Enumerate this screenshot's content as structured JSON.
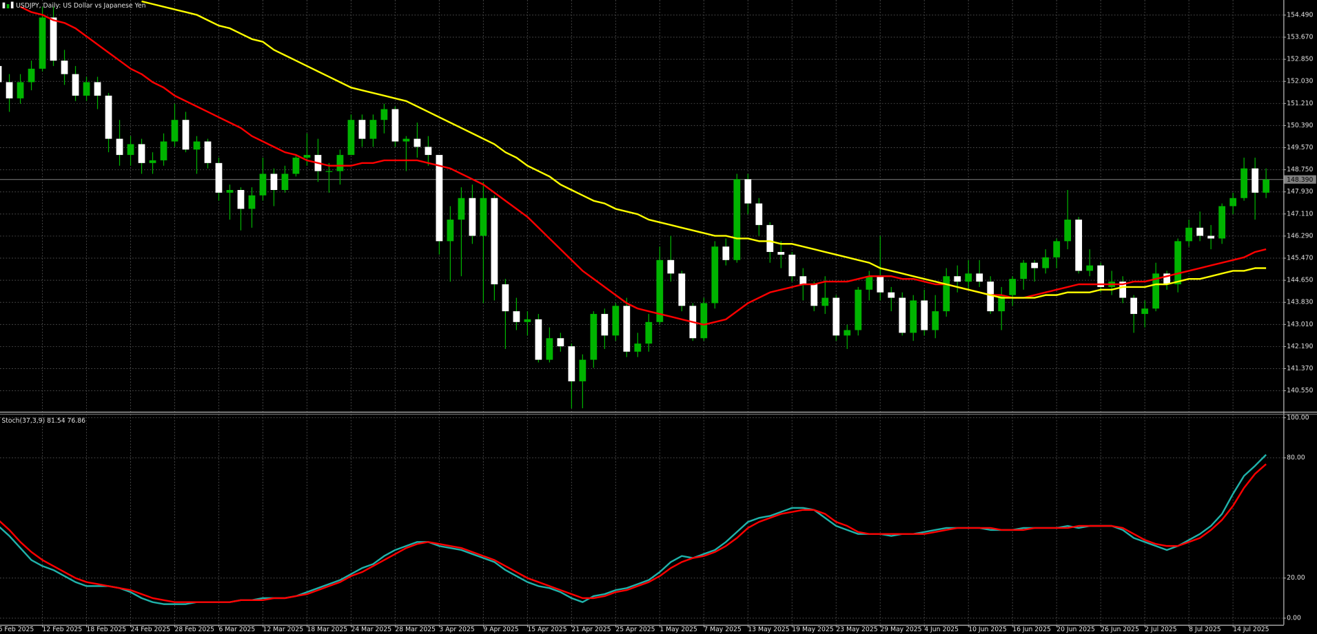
{
  "chart_data": [
    {
      "type": "candlestick",
      "title": "USDJPY, Daily:  US Dollar vs Japanese Yen",
      "categories": [
        "6 Feb 2025",
        null,
        null,
        null,
        "12 Feb 2025",
        null,
        null,
        null,
        "18 Feb 2025",
        null,
        null,
        null,
        "24 Feb 2025",
        null,
        null,
        null,
        "28 Feb 2025",
        null,
        null,
        null,
        "6 Mar 2025",
        null,
        null,
        null,
        "12 Mar 2025",
        null,
        null,
        null,
        "18 Mar 2025",
        null,
        null,
        null,
        "24 Mar 2025",
        null,
        null,
        null,
        "28 Mar 2025",
        null,
        null,
        null,
        "3 Apr 2025",
        null,
        null,
        null,
        "9 Apr 2025",
        null,
        null,
        null,
        "15 Apr 2025",
        null,
        null,
        null,
        "21 Apr 2025",
        null,
        null,
        null,
        "25 Apr 2025",
        null,
        null,
        null,
        "1 May 2025",
        null,
        null,
        null,
        "7 May 2025",
        null,
        null,
        null,
        "13 May 2025",
        null,
        null,
        null,
        "19 May 2025",
        null,
        null,
        null,
        "23 May 2025",
        null,
        null,
        null,
        "29 May 2025",
        null,
        null,
        null,
        "4 Jun 2025",
        null,
        null,
        null,
        "10 Jun 2025",
        null,
        null,
        null,
        "16 Jun 2025",
        null,
        null,
        null,
        "20 Jun 2025",
        null,
        null,
        null,
        "26 Jun 2025",
        null,
        null,
        null,
        "2 Jul 2025",
        null,
        null,
        null,
        "8 Jul 2025",
        null,
        null,
        null,
        "14 Jul 2025",
        null,
        null,
        null
      ],
      "open": [
        152.6,
        152.0,
        151.4,
        152.0,
        152.5,
        154.4,
        152.8,
        152.3,
        151.5,
        152.0,
        151.5,
        149.9,
        149.3,
        149.7,
        149.0,
        149.1,
        149.8,
        150.6,
        149.5,
        149.8,
        149.0,
        147.9,
        148.0,
        147.3,
        147.8,
        148.6,
        148.0,
        148.6,
        149.2,
        149.3,
        148.7,
        148.7,
        149.3,
        150.6,
        149.9,
        150.6,
        151.0,
        149.8,
        149.9,
        149.6,
        149.3,
        146.1,
        146.9,
        147.7,
        146.3,
        147.7,
        144.5,
        143.5,
        143.1,
        143.2,
        141.7,
        142.5,
        142.2,
        140.9,
        141.7,
        143.4,
        142.6,
        143.7,
        142.0,
        142.3,
        143.1,
        145.4,
        144.9,
        143.7,
        142.5,
        143.8,
        145.9,
        145.4,
        148.4,
        147.5,
        146.7,
        145.7,
        145.6,
        144.8,
        144.5,
        143.7,
        144.0,
        142.6,
        142.8,
        144.3,
        144.8,
        144.2,
        144.0,
        142.7,
        143.9,
        142.8,
        143.5,
        144.8,
        144.6,
        144.9,
        144.6,
        143.5,
        144.1,
        144.7,
        145.3,
        145.1,
        145.5,
        146.1,
        146.9,
        145.0,
        145.2,
        144.4,
        144.6,
        144.0,
        143.4,
        143.6,
        144.9,
        144.5,
        146.1,
        146.6,
        146.3,
        146.2,
        147.4,
        147.7,
        148.8,
        147.9
      ],
      "high": [
        152.9,
        152.3,
        152.3,
        152.8,
        154.8,
        154.8,
        153.2,
        152.6,
        152.2,
        152.2,
        151.6,
        150.6,
        150.0,
        149.9,
        149.4,
        150.1,
        151.2,
        150.9,
        150.0,
        149.9,
        149.2,
        148.2,
        148.1,
        148.1,
        149.2,
        148.8,
        148.9,
        149.3,
        150.1,
        149.9,
        149.0,
        149.5,
        150.8,
        150.8,
        150.8,
        151.2,
        151.1,
        150.0,
        150.5,
        150.0,
        149.3,
        147.4,
        148.1,
        148.2,
        148.3,
        147.8,
        144.7,
        144.0,
        143.5,
        143.4,
        142.9,
        142.7,
        142.3,
        141.9,
        143.5,
        143.6,
        143.8,
        144.0,
        142.7,
        143.4,
        145.9,
        146.3,
        145.0,
        143.8,
        144.0,
        146.1,
        146.2,
        148.6,
        148.6,
        147.7,
        146.8,
        146.1,
        145.7,
        145.1,
        144.6,
        144.8,
        144.1,
        143.0,
        144.4,
        145.0,
        146.3,
        144.4,
        144.2,
        144.1,
        144.3,
        144.1,
        145.1,
        145.2,
        145.4,
        145.4,
        144.8,
        144.4,
        144.8,
        145.4,
        145.4,
        145.8,
        146.2,
        148.0,
        147.0,
        145.8,
        145.3,
        145.0,
        144.8,
        144.1,
        143.9,
        145.3,
        145.0,
        146.2,
        146.9,
        147.2,
        146.7,
        147.5,
        147.9,
        149.2,
        149.2,
        148.8
      ],
      "low": [
        151.3,
        150.9,
        151.2,
        151.7,
        152.4,
        152.6,
        151.9,
        151.3,
        151.3,
        151.0,
        149.4,
        148.9,
        148.9,
        148.6,
        148.6,
        148.9,
        149.6,
        149.4,
        148.6,
        148.8,
        147.6,
        146.9,
        146.5,
        146.6,
        147.6,
        147.4,
        147.9,
        148.5,
        148.9,
        148.3,
        147.9,
        148.2,
        149.3,
        149.6,
        149.6,
        150.1,
        149.6,
        148.7,
        149.2,
        148.9,
        145.6,
        144.6,
        144.8,
        146.0,
        143.8,
        143.9,
        142.1,
        142.8,
        142.6,
        141.6,
        141.6,
        142.0,
        139.9,
        139.9,
        141.4,
        142.1,
        142.4,
        141.8,
        141.8,
        142.0,
        143.0,
        144.6,
        143.5,
        142.4,
        142.4,
        143.6,
        145.2,
        145.3,
        147.1,
        146.3,
        145.3,
        145.1,
        144.6,
        143.9,
        143.5,
        143.4,
        142.4,
        142.1,
        142.6,
        143.9,
        143.9,
        143.5,
        142.6,
        142.4,
        142.6,
        142.5,
        143.3,
        144.2,
        144.3,
        144.4,
        143.4,
        142.8,
        143.7,
        144.3,
        144.6,
        144.9,
        145.1,
        145.8,
        144.9,
        144.8,
        144.2,
        144.1,
        143.8,
        142.7,
        142.9,
        143.5,
        144.3,
        144.2,
        145.9,
        146.1,
        145.8,
        146.0,
        147.1,
        147.6,
        146.9,
        147.7
      ],
      "close": [
        152.0,
        151.4,
        152.0,
        152.5,
        154.4,
        152.8,
        152.3,
        151.5,
        152.0,
        151.5,
        149.9,
        149.3,
        149.7,
        149.0,
        149.1,
        149.8,
        150.6,
        149.5,
        149.8,
        149.0,
        147.9,
        148.0,
        147.3,
        147.8,
        148.6,
        148.0,
        148.6,
        149.2,
        149.3,
        148.7,
        148.7,
        149.3,
        150.6,
        149.9,
        150.6,
        151.0,
        149.8,
        149.9,
        149.6,
        149.3,
        146.1,
        146.9,
        147.7,
        146.3,
        147.7,
        144.5,
        143.5,
        143.1,
        143.2,
        141.7,
        142.5,
        142.2,
        140.9,
        141.7,
        143.4,
        142.6,
        143.7,
        142.0,
        142.3,
        143.1,
        145.4,
        144.9,
        143.7,
        142.5,
        143.8,
        145.9,
        145.4,
        148.4,
        147.5,
        146.7,
        145.7,
        145.6,
        144.8,
        144.5,
        143.7,
        144.0,
        142.6,
        142.8,
        144.3,
        144.8,
        144.2,
        144.0,
        142.7,
        143.9,
        142.8,
        143.5,
        144.8,
        144.6,
        144.9,
        144.6,
        143.5,
        144.1,
        144.7,
        145.3,
        145.1,
        145.5,
        146.1,
        146.9,
        145.0,
        145.2,
        144.4,
        144.6,
        144.0,
        143.4,
        143.6,
        144.9,
        144.5,
        146.1,
        146.6,
        146.3,
        146.2,
        147.4,
        147.7,
        148.8,
        147.9,
        148.39
      ],
      "up_color": "#00b400",
      "down_color": "#ffffff",
      "wick_color": "#00b400",
      "series": [
        {
          "color": "#ff0000",
          "values": [
            null,
            null,
            154.8,
            154.6,
            154.5,
            154.3,
            154.2,
            154.0,
            153.7,
            153.4,
            153.1,
            152.8,
            152.5,
            152.3,
            152.0,
            151.8,
            151.5,
            151.3,
            151.1,
            150.9,
            150.7,
            150.5,
            150.3,
            150.0,
            149.8,
            149.6,
            149.4,
            149.3,
            149.1,
            149.0,
            148.9,
            148.9,
            148.9,
            149.0,
            149.0,
            149.1,
            149.1,
            149.1,
            149.1,
            149.0,
            148.9,
            148.8,
            148.6,
            148.4,
            148.2,
            147.9,
            147.6,
            147.3,
            147.0,
            146.6,
            146.2,
            145.8,
            145.4,
            145.0,
            144.7,
            144.4,
            144.1,
            143.8,
            143.6,
            143.5,
            143.4,
            143.3,
            143.2,
            143.1,
            143.0,
            143.1,
            143.2,
            143.5,
            143.8,
            144.0,
            144.2,
            144.3,
            144.4,
            144.5,
            144.5,
            144.6,
            144.6,
            144.6,
            144.7,
            144.8,
            144.8,
            144.8,
            144.7,
            144.7,
            144.6,
            144.5,
            144.5,
            144.4,
            144.3,
            144.2,
            144.1,
            144.1,
            144.0,
            144.0,
            144.1,
            144.2,
            144.3,
            144.4,
            144.5,
            144.5,
            144.5,
            144.5,
            144.5,
            144.6,
            144.6,
            144.7,
            144.8,
            144.9,
            145.0,
            145.1,
            145.2,
            145.3,
            145.4,
            145.5,
            145.7,
            145.8
          ]
        },
        {
          "color": "#ffff00",
          "values": [
            null,
            null,
            null,
            null,
            null,
            null,
            null,
            null,
            null,
            null,
            null,
            null,
            null,
            155.0,
            154.9,
            154.8,
            154.7,
            154.6,
            154.5,
            154.3,
            154.1,
            154.0,
            153.8,
            153.6,
            153.5,
            153.2,
            153.0,
            152.8,
            152.6,
            152.4,
            152.2,
            152.0,
            151.8,
            151.7,
            151.6,
            151.5,
            151.4,
            151.3,
            151.1,
            150.9,
            150.7,
            150.5,
            150.3,
            150.1,
            149.9,
            149.7,
            149.4,
            149.2,
            148.9,
            148.7,
            148.5,
            148.2,
            148.0,
            147.8,
            147.6,
            147.5,
            147.3,
            147.2,
            147.1,
            146.9,
            146.8,
            146.7,
            146.6,
            146.5,
            146.4,
            146.3,
            146.3,
            146.2,
            146.2,
            146.1,
            146.1,
            146.0,
            146.0,
            145.9,
            145.8,
            145.7,
            145.6,
            145.5,
            145.4,
            145.3,
            145.1,
            145.0,
            144.9,
            144.8,
            144.7,
            144.6,
            144.5,
            144.4,
            144.3,
            144.2,
            144.1,
            144.0,
            144.0,
            144.0,
            144.0,
            144.1,
            144.1,
            144.2,
            144.2,
            144.2,
            144.3,
            144.3,
            144.4,
            144.4,
            144.4,
            144.5,
            144.5,
            144.6,
            144.7,
            144.7,
            144.8,
            144.9,
            145.0,
            145.0,
            145.1,
            145.1
          ]
        }
      ],
      "ylim": [
        139.77,
        155.05
      ],
      "yticks": [
        {
          "value": 154.49,
          "label": "154.490"
        },
        {
          "value": 153.67,
          "label": "153.670"
        },
        {
          "value": 152.85,
          "label": "152.850"
        },
        {
          "value": 152.03,
          "label": "152.030"
        },
        {
          "value": 151.21,
          "label": "151.210"
        },
        {
          "value": 150.39,
          "label": "150.390"
        },
        {
          "value": 149.57,
          "label": "149.570"
        },
        {
          "value": 148.75,
          "label": "148.750"
        },
        {
          "value": 147.93,
          "label": "147.930"
        },
        {
          "value": 147.11,
          "label": "147.110"
        },
        {
          "value": 146.29,
          "label": "146.290"
        },
        {
          "value": 145.47,
          "label": "145.470"
        },
        {
          "value": 144.65,
          "label": "144.650"
        },
        {
          "value": 143.83,
          "label": "143.830"
        },
        {
          "value": 143.01,
          "label": "143.010"
        },
        {
          "value": 142.19,
          "label": "142.190"
        },
        {
          "value": 141.37,
          "label": "141.370"
        },
        {
          "value": 140.55,
          "label": "140.550"
        }
      ],
      "current_price": {
        "value": 148.39,
        "label": "148.390"
      },
      "grid": true
    },
    {
      "type": "line",
      "title": "Stoch(37,3,9) 81.54 76.86",
      "series": [
        {
          "color": "#20b2aa",
          "values": [
            46,
            41,
            35,
            29,
            26,
            24,
            21,
            18,
            16,
            16,
            16,
            15,
            13,
            10,
            8,
            7,
            7,
            7,
            8,
            8,
            8,
            8,
            9,
            9,
            10,
            10,
            10,
            11,
            13,
            15,
            17,
            19,
            22,
            25,
            27,
            31,
            34,
            36,
            38,
            38,
            36,
            35,
            34,
            32,
            30,
            28,
            24,
            21,
            18,
            16,
            15,
            13,
            10,
            8,
            11,
            12,
            14,
            15,
            17,
            19,
            23,
            28,
            31,
            30,
            32,
            34,
            38,
            43,
            48,
            50,
            51,
            53,
            55,
            55,
            54,
            50,
            46,
            44,
            42,
            42,
            42,
            41,
            42,
            42,
            43,
            44,
            45,
            45,
            45,
            45,
            44,
            44,
            44,
            45,
            45,
            45,
            45,
            46,
            45,
            46,
            46,
            46,
            44,
            40,
            38,
            36,
            34,
            36,
            39,
            42,
            46,
            52,
            62,
            71,
            76,
            81.54
          ]
        },
        {
          "color": "#ff0000",
          "values": [
            49,
            44,
            38,
            33,
            29,
            26,
            23,
            20,
            18,
            17,
            16,
            15,
            14,
            12,
            10,
            9,
            8,
            8,
            8,
            8,
            8,
            8,
            9,
            9,
            9,
            10,
            10,
            11,
            12,
            14,
            16,
            18,
            21,
            23,
            26,
            29,
            32,
            35,
            37,
            38,
            37,
            36,
            35,
            33,
            31,
            29,
            26,
            23,
            20,
            18,
            16,
            14,
            12,
            10,
            10,
            11,
            13,
            14,
            16,
            18,
            21,
            25,
            28,
            30,
            31,
            33,
            36,
            40,
            45,
            48,
            50,
            52,
            53,
            54,
            54,
            52,
            48,
            46,
            43,
            42,
            42,
            42,
            42,
            42,
            42,
            43,
            44,
            45,
            45,
            45,
            45,
            44,
            44,
            44,
            45,
            45,
            45,
            45,
            46,
            46,
            46,
            46,
            45,
            42,
            39,
            37,
            36,
            36,
            38,
            40,
            44,
            49,
            56,
            65,
            72,
            76.86
          ]
        }
      ],
      "ylim": [
        -3.3,
        101.7
      ],
      "yticks": [
        {
          "value": 100,
          "label": "100.00"
        },
        {
          "value": 80,
          "label": "80.00"
        },
        {
          "value": 20,
          "label": "20.00"
        },
        {
          "value": 0,
          "label": "0.00"
        }
      ],
      "grid": true
    }
  ]
}
